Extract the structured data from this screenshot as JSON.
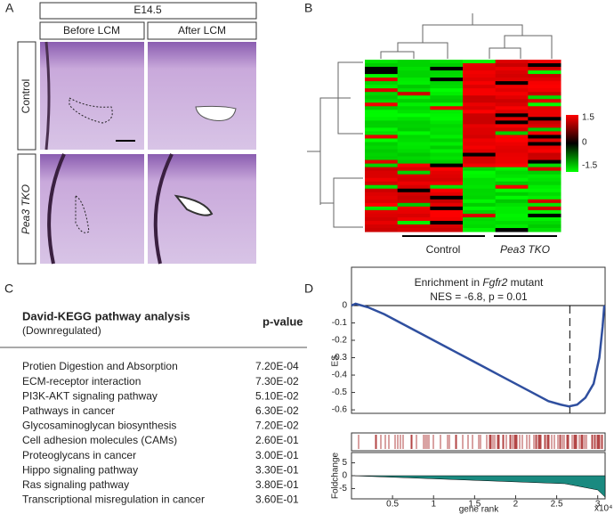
{
  "panel_a": {
    "letter": "A",
    "stage": "E14.5",
    "columns": [
      "Before LCM",
      "After LCM"
    ],
    "rows": [
      "Control",
      "Pea3 TKO"
    ]
  },
  "panel_b": {
    "letter": "B",
    "colorbar_ticks": [
      "1.5",
      "0",
      "-1.5"
    ],
    "groups": [
      "Control",
      "Pea3 TKO"
    ]
  },
  "panel_c": {
    "letter": "C",
    "title": "David-KEGG pathway analysis",
    "subtitle": "(Downregulated)",
    "value_header": "p-value",
    "rows": [
      [
        "Protien Digestion and Absorption",
        "7.20E-04"
      ],
      [
        "ECM-receptor interaction",
        "7.30E-02"
      ],
      [
        "PI3K-AKT signaling pathway",
        "5.10E-02"
      ],
      [
        "Pathways in cancer",
        "6.30E-02"
      ],
      [
        "Glycosaminoglycan biosynthesis",
        "7.20E-02"
      ],
      [
        "Cell adhesion molecules (CAMs)",
        "2.60E-01"
      ],
      [
        "Proteoglycans in cancer",
        "3.00E-01"
      ],
      [
        "Hippo signaling pathway",
        "3.30E-01"
      ],
      [
        "Ras signaling pathway",
        "3.80E-01"
      ],
      [
        "Transcriptional misregulation in cancer",
        "3.60E-01"
      ]
    ]
  },
  "panel_d": {
    "letter": "D",
    "title_pre": "Enrichment in ",
    "title_gene": "Fgfr2",
    "title_post": " mutant",
    "stats": "NES = -6.8,  p = 0.01",
    "ylabel": "ES",
    "xlabel": "gene rank",
    "x_multiplier": "x10⁴",
    "fc_label": "Foldchange",
    "xlim": [
      0,
      3.09
    ],
    "ylim": [
      -0.62,
      0.22
    ],
    "xticks": [
      0.5,
      1,
      1.5,
      2,
      2.5,
      3
    ],
    "yticks": [
      0,
      -0.1,
      -0.2,
      -0.3,
      -0.4,
      -0.5,
      -0.6
    ],
    "fc_ylim": [
      -9,
      9
    ],
    "fc_yticks": [
      5,
      0,
      -5
    ],
    "leading_edge": 2.66,
    "es_x": [
      0,
      0.05,
      0.2,
      0.4,
      0.6,
      0.8,
      1.0,
      1.2,
      1.4,
      1.6,
      1.8,
      2.0,
      2.2,
      2.4,
      2.55,
      2.65,
      2.75,
      2.85,
      2.95,
      3.02,
      3.06,
      3.08
    ],
    "es_y": [
      0,
      0.01,
      -0.01,
      -0.05,
      -0.1,
      -0.15,
      -0.2,
      -0.25,
      -0.3,
      -0.35,
      -0.4,
      -0.45,
      -0.5,
      -0.55,
      -0.57,
      -0.58,
      -0.57,
      -0.53,
      -0.45,
      -0.3,
      -0.12,
      0
    ]
  }
}
